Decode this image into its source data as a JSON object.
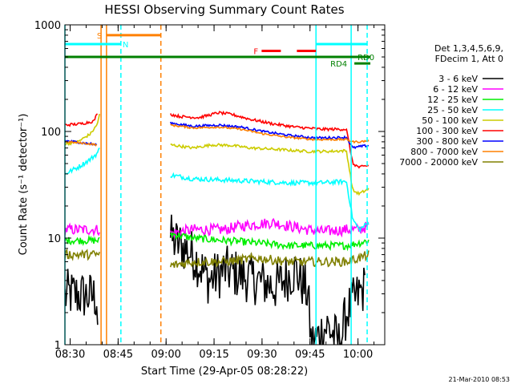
{
  "chart_data": {
    "type": "line",
    "title": "HESSI Observing Summary Count Rates",
    "xlabel": "Start Time (29-Apr-05 08:28:22)",
    "ylabel": "Count Rate (s⁻¹ detector⁻¹)",
    "x_unit": "minutes after 08:28:22",
    "xlim": [
      0,
      100
    ],
    "ylim": [
      1,
      1000
    ],
    "y_scale": "log",
    "grid": false,
    "x_ticks": [
      {
        "label": "08:30",
        "value": 1.63
      },
      {
        "label": "08:45",
        "value": 16.63
      },
      {
        "label": "09:00",
        "value": 31.63
      },
      {
        "label": "09:15",
        "value": 46.63
      },
      {
        "label": "09:30",
        "value": 61.63
      },
      {
        "label": "09:45",
        "value": 76.63
      },
      {
        "label": "10:00",
        "value": 91.63
      }
    ],
    "y_ticks": [
      {
        "label": "1",
        "value": 1
      },
      {
        "label": "10",
        "value": 10
      },
      {
        "label": "100",
        "value": 100
      },
      {
        "label": "1000",
        "value": 1000
      }
    ],
    "legend_header": [
      "Det 1,3,4,5,6,9,",
      "FDecim 1, Att 0"
    ],
    "legend_position": "right",
    "timestamp": "21-Mar-2010 08:53",
    "series": [
      {
        "name": "3 - 6 keV",
        "color": "#000000",
        "noise": 0.55,
        "points": [
          [
            0,
            2.8
          ],
          [
            1,
            3.0
          ],
          [
            10,
            2.8
          ],
          [
            10.5,
            1.0
          ]
        ],
        "points2": [
          [
            33,
            10
          ],
          [
            40,
            7
          ],
          [
            45,
            4
          ],
          [
            50,
            5
          ],
          [
            60,
            4
          ],
          [
            66,
            3.5
          ],
          [
            72,
            5
          ],
          [
            76,
            3
          ],
          [
            77,
            1.0
          ],
          [
            82,
            1.5
          ],
          [
            86,
            1.0
          ],
          [
            88,
            2
          ],
          [
            92,
            3
          ],
          [
            94,
            3.5
          ]
        ]
      },
      {
        "name": "6 - 12 keV",
        "color": "#ff00ff",
        "noise": 0.12,
        "points": [
          [
            0,
            12
          ],
          [
            10,
            12
          ],
          [
            11,
            12
          ]
        ],
        "points2": [
          [
            33,
            11
          ],
          [
            40,
            12
          ],
          [
            50,
            12
          ],
          [
            55,
            13
          ],
          [
            60,
            13.5
          ],
          [
            65,
            14
          ],
          [
            70,
            13
          ],
          [
            76,
            12
          ],
          [
            80,
            11.5
          ],
          [
            88,
            12
          ],
          [
            92,
            12
          ],
          [
            95,
            13
          ]
        ]
      },
      {
        "name": "12 - 25 keV",
        "color": "#00ee00",
        "noise": 0.08,
        "points": [
          [
            0,
            9.5
          ],
          [
            10,
            9.5
          ],
          [
            11,
            9.5
          ]
        ],
        "points2": [
          [
            33,
            11
          ],
          [
            40,
            10
          ],
          [
            50,
            9.5
          ],
          [
            60,
            9
          ],
          [
            70,
            8.5
          ],
          [
            80,
            8.5
          ],
          [
            88,
            8.5
          ],
          [
            92,
            9
          ],
          [
            95,
            9.5
          ]
        ]
      },
      {
        "name": "25 - 50 keV",
        "color": "#00ffff",
        "noise": 0.05,
        "points": [
          [
            0,
            40
          ],
          [
            4,
            46
          ],
          [
            8,
            55
          ],
          [
            10,
            62
          ],
          [
            11,
            70
          ]
        ],
        "points2": [
          [
            33,
            39
          ],
          [
            40,
            36
          ],
          [
            50,
            35
          ],
          [
            60,
            34
          ],
          [
            70,
            33
          ],
          [
            80,
            33
          ],
          [
            88,
            34
          ],
          [
            90,
            15
          ],
          [
            92,
            12
          ],
          [
            95,
            14
          ]
        ]
      },
      {
        "name": "50 - 100 keV",
        "color": "#cccc00",
        "noise": 0.03,
        "points": [
          [
            0,
            76
          ],
          [
            4,
            80
          ],
          [
            8,
            95
          ],
          [
            10,
            115
          ],
          [
            11,
            150
          ]
        ],
        "points2": [
          [
            33,
            75
          ],
          [
            40,
            70
          ],
          [
            46,
            75
          ],
          [
            52,
            74
          ],
          [
            58,
            70
          ],
          [
            66,
            68
          ],
          [
            76,
            65
          ],
          [
            82,
            65
          ],
          [
            88,
            66
          ],
          [
            90,
            28
          ],
          [
            92,
            26
          ],
          [
            95,
            29
          ]
        ]
      },
      {
        "name": "100 - 300 keV",
        "color": "#ff0000",
        "noise": 0.03,
        "points": [
          [
            0,
            115
          ],
          [
            5,
            118
          ],
          [
            9,
            125
          ],
          [
            10.5,
            155
          ]
        ],
        "points2": [
          [
            33,
            145
          ],
          [
            36,
            138
          ],
          [
            42,
            135
          ],
          [
            48,
            150
          ],
          [
            52,
            145
          ],
          [
            58,
            130
          ],
          [
            65,
            118
          ],
          [
            72,
            110
          ],
          [
            80,
            105
          ],
          [
            88,
            105
          ],
          [
            90,
            50
          ],
          [
            92,
            46
          ],
          [
            95,
            48
          ]
        ]
      },
      {
        "name": "300 - 800 keV",
        "color": "#0000ff",
        "noise": 0.025,
        "points": [
          [
            0,
            82
          ],
          [
            6,
            78
          ],
          [
            10,
            75
          ]
        ],
        "points2": [
          [
            33,
            120
          ],
          [
            40,
            112
          ],
          [
            48,
            115
          ],
          [
            55,
            110
          ],
          [
            62,
            100
          ],
          [
            70,
            92
          ],
          [
            78,
            87
          ],
          [
            88,
            88
          ],
          [
            90,
            70
          ],
          [
            92,
            72
          ],
          [
            95,
            74
          ]
        ]
      },
      {
        "name": "800 - 7000 keV",
        "color": "#ff8000",
        "noise": 0.02,
        "points": [
          [
            0,
            80
          ],
          [
            5,
            78
          ],
          [
            10,
            75
          ]
        ],
        "points2": [
          [
            33,
            115
          ],
          [
            40,
            108
          ],
          [
            48,
            110
          ],
          [
            55,
            105
          ],
          [
            62,
            95
          ],
          [
            70,
            88
          ],
          [
            78,
            84
          ],
          [
            88,
            84
          ],
          [
            90,
            80
          ],
          [
            92,
            80
          ],
          [
            95,
            82
          ]
        ]
      },
      {
        "name": "7000 - 20000 keV",
        "color": "#808000",
        "noise": 0.1,
        "points": [
          [
            0,
            7
          ],
          [
            10,
            7
          ],
          [
            11,
            7
          ]
        ],
        "points2": [
          [
            33,
            5.5
          ],
          [
            40,
            6
          ],
          [
            50,
            6
          ],
          [
            60,
            6.5
          ],
          [
            70,
            6
          ],
          [
            80,
            6
          ],
          [
            88,
            6
          ],
          [
            92,
            6.5
          ],
          [
            95,
            7
          ]
        ]
      }
    ],
    "vertical_lines": [
      {
        "x": 0.0,
        "color": "#00ffff",
        "style": "solid"
      },
      {
        "x": 11.3,
        "color": "#ff8000",
        "style": "solid"
      },
      {
        "x": 13.0,
        "color": "#ff8000",
        "style": "solid"
      },
      {
        "x": 17.5,
        "color": "#00ffff",
        "style": "dashed"
      },
      {
        "x": 30.0,
        "color": "#ff8000",
        "style": "dashed"
      },
      {
        "x": 78.5,
        "color": "#00ffff",
        "style": "solid"
      },
      {
        "x": 89.5,
        "color": "#00ffff",
        "style": "solid"
      },
      {
        "x": 94.5,
        "color": "#00ffff",
        "style": "dashed"
      }
    ],
    "flag_bars": [
      {
        "label": "S",
        "color": "#ff8000",
        "x0": 13.0,
        "x1": 30.0,
        "y": 800,
        "style": "solid",
        "label_x": 10.0
      },
      {
        "label": "N",
        "color": "#00ffff",
        "x0": 0.0,
        "x1": 17.5,
        "y": 660,
        "style": "solid",
        "label_x": 18.0
      },
      {
        "label": "F",
        "color": "#ff0000",
        "x0": 61.5,
        "x1": 78.5,
        "y": 570,
        "style": "dashed",
        "label_x": 59.0
      },
      {
        "label": "",
        "color": "#00ffff",
        "x0": 78.5,
        "x1": 94.5,
        "y": 660,
        "style": "solid",
        "label_x": 0
      },
      {
        "label": "RD0",
        "color": "#008000",
        "x0": 0.0,
        "x1": 95.5,
        "y": 500,
        "style": "solid",
        "label_x": 91.5
      },
      {
        "label": "RD4",
        "color": "#008000",
        "x0": 90.5,
        "x1": 95.5,
        "y": 435,
        "style": "solid",
        "label_x": 83.0
      }
    ]
  }
}
